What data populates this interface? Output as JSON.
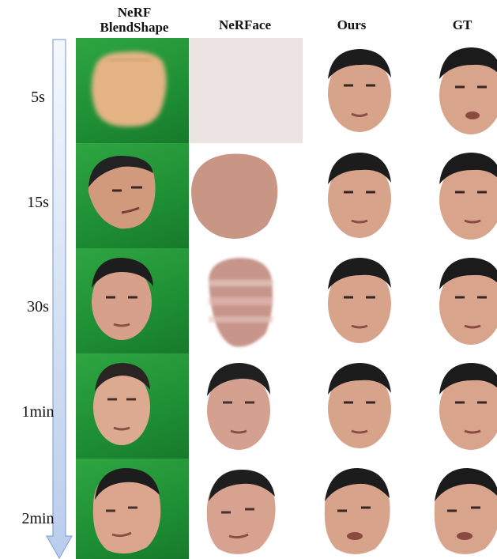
{
  "columns": [
    {
      "line1": "NeRF",
      "line2": "BlendShape"
    },
    {
      "line1": "NeRFace",
      "line2": ""
    },
    {
      "line1": "Ours",
      "line2": ""
    },
    {
      "line1": "GT",
      "line2": ""
    }
  ],
  "rows": [
    "5s",
    "15s",
    "30s",
    "1min",
    "2min"
  ],
  "colors": {
    "green_screen": "#22983a",
    "skin": "#d9a48c",
    "hair": "#1b1b1b",
    "arrow_fill": "#dfe9f7",
    "arrow_stroke": "#8aa6d6"
  }
}
